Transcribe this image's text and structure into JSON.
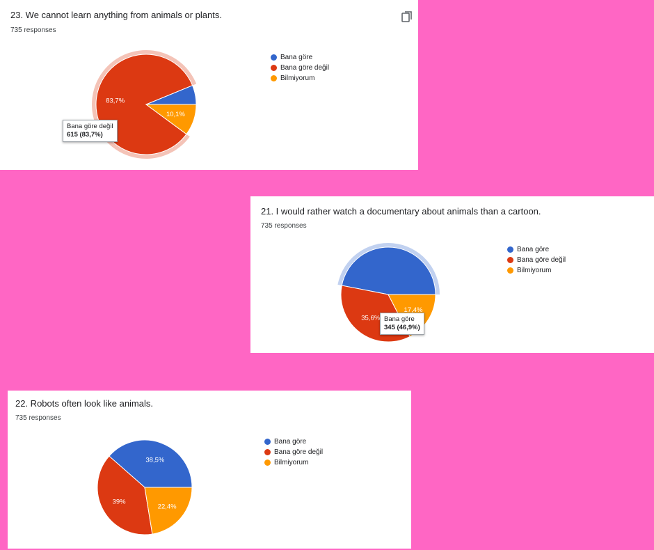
{
  "colors": {
    "background": "#ff66c4",
    "blue": "#3366cc",
    "red": "#dc3912",
    "orange": "#ff9900"
  },
  "legend_labels": [
    "Bana göre",
    "Bana göre değil",
    "Bilmiyorum"
  ],
  "cards": [
    {
      "title": "23. We cannot learn anything from animals or plants.",
      "responses": "735 responses",
      "copy_icon": "copy-icon",
      "tooltip": {
        "label": "Bana göre değil",
        "value": "615 (83,7%)"
      }
    },
    {
      "title": "21. I would rather watch a documentary about animals than a cartoon.",
      "responses": "735 responses",
      "tooltip": {
        "label": "Bana göre",
        "value": "345 (46,9%)"
      }
    },
    {
      "title": "22. Robots often look like animals.",
      "responses": "735 responses"
    }
  ],
  "chart_data": [
    {
      "type": "pie",
      "title": "23. We cannot learn anything from animals or plants.",
      "categories": [
        "Bana göre",
        "Bana göre değil",
        "Bilmiyorum"
      ],
      "values": [
        6.2,
        83.7,
        10.1
      ],
      "data_labels": [
        "",
        "83,7%",
        "10,1%"
      ],
      "highlighted": "Bana göre değil",
      "legend": "right"
    },
    {
      "type": "pie",
      "title": "21. I would rather watch a documentary about animals than a cartoon.",
      "categories": [
        "Bana göre",
        "Bana göre değil",
        "Bilmiyorum"
      ],
      "values": [
        46.9,
        35.6,
        17.4
      ],
      "data_labels": [
        "",
        "35,6%",
        "17,4%"
      ],
      "highlighted": "Bana göre",
      "legend": "right"
    },
    {
      "type": "pie",
      "title": "22. Robots often look like animals.",
      "categories": [
        "Bana göre",
        "Bana göre değil",
        "Bilmiyorum"
      ],
      "values": [
        38.5,
        39,
        22.4
      ],
      "data_labels": [
        "38,5%",
        "39%",
        "22,4%"
      ],
      "highlighted": "",
      "legend": "right"
    }
  ]
}
